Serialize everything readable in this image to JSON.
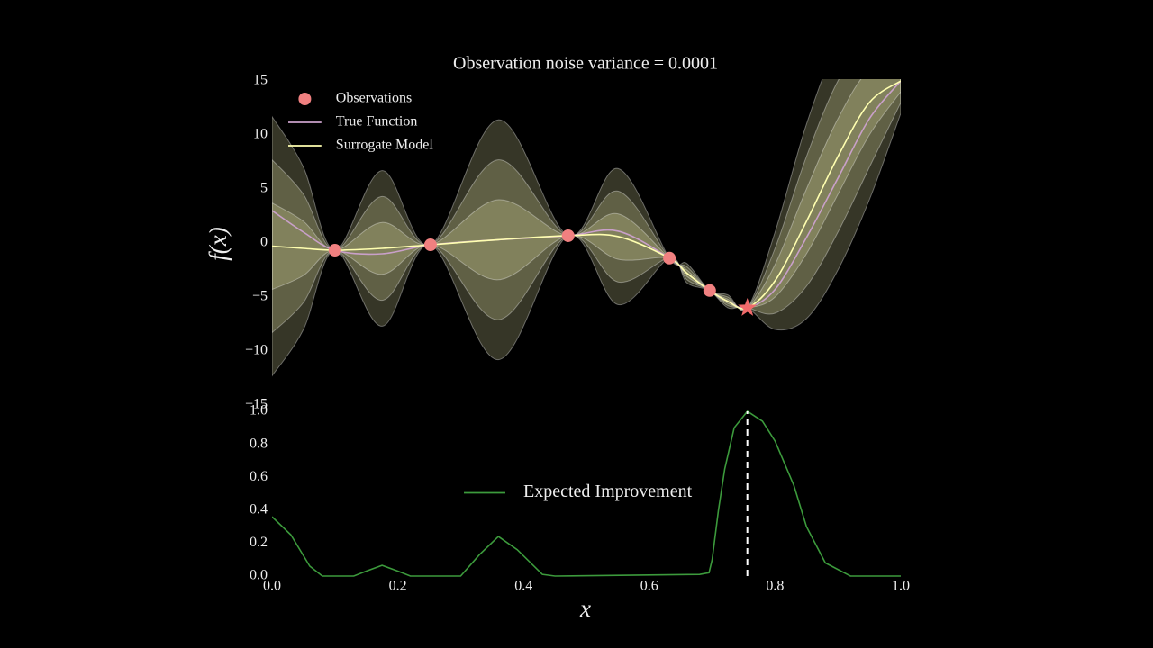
{
  "chart_data": [
    {
      "type": "line",
      "title": "Observation noise variance = 0.0001",
      "ylabel": "f(x)",
      "x": [
        0,
        0.05,
        0.1,
        0.175,
        0.252,
        0.36,
        0.471,
        0.55,
        0.632,
        0.66,
        0.696,
        0.725,
        0.756,
        0.8,
        0.85,
        0.9,
        0.95,
        1.0
      ],
      "xlim": [
        0,
        1
      ],
      "ylim": [
        -15,
        15
      ],
      "yticks": [
        {
          "value": -15,
          "label": "−15"
        },
        {
          "value": -10,
          "label": "−10"
        },
        {
          "value": -5,
          "label": "−5"
        },
        0,
        5,
        10,
        15
      ],
      "legend": "upper left",
      "series": [
        {
          "name": "True Function",
          "color": "#c9a0c9",
          "values": [
            3,
            1,
            -0.67,
            -1,
            -0.17,
            0.3,
            0.67,
            1.1,
            -1.4,
            -2.8,
            -4.4,
            -5.4,
            -6.0,
            -4.3,
            0.5,
            6,
            11.5,
            15
          ]
        },
        {
          "name": "Surrogate Model",
          "color": "#ffffb0",
          "values": [
            -0.3,
            -0.5,
            -0.67,
            -0.5,
            -0.17,
            0.3,
            0.67,
            0.6,
            -1.4,
            -2.8,
            -4.4,
            -5.4,
            -6.0,
            -3.5,
            2,
            8,
            13,
            15
          ]
        }
      ],
      "band_color": "#f5f5b0",
      "bands": [
        {
          "lower": [
            -12.3,
            -8,
            -0.67,
            -7.7,
            -0.17,
            -10.8,
            0.67,
            -5.7,
            -1.4,
            -3.7,
            -4.4,
            -6.0,
            -6.0,
            -8,
            -7,
            -2.5,
            4,
            12
          ],
          "upper": [
            11.7,
            7,
            -0.67,
            6.7,
            -0.17,
            11.4,
            0.67,
            6.9,
            -1.4,
            -1.9,
            -4.4,
            -4.8,
            -6.0,
            1,
            11,
            18.5,
            22,
            18
          ]
        },
        {
          "lower": [
            -8.3,
            -5.5,
            -0.67,
            -5.3,
            -0.17,
            -7.1,
            0.67,
            -3.6,
            -1.4,
            -3.4,
            -4.4,
            -5.8,
            -6.0,
            -6.5,
            -4,
            1,
            7,
            13
          ],
          "upper": [
            7.7,
            4.5,
            -0.67,
            4.3,
            -0.17,
            7.7,
            0.67,
            4.8,
            -1.4,
            -2.2,
            -4.4,
            -5.0,
            -6.0,
            -0.5,
            8,
            15,
            19,
            17
          ]
        },
        {
          "lower": [
            -4.3,
            -3,
            -0.67,
            -2.9,
            -0.17,
            -3.4,
            0.67,
            -1.5,
            -1.4,
            -3.1,
            -4.4,
            -5.6,
            -6.0,
            -5,
            -1,
            4.5,
            10,
            14
          ],
          "upper": [
            3.7,
            2,
            -0.67,
            1.9,
            -0.17,
            4,
            0.67,
            2.7,
            -1.4,
            -2.5,
            -4.4,
            -5.2,
            -6.0,
            -2,
            5,
            11.5,
            16,
            16
          ]
        }
      ],
      "observations": {
        "name": "Observations",
        "color": "#f08080",
        "x": [
          0.1,
          0.252,
          0.471,
          0.632,
          0.696
        ],
        "y": [
          -0.67,
          -0.17,
          0.67,
          -1.4,
          -4.4
        ]
      },
      "next_point": {
        "color": "#f06a6a",
        "x": 0.756,
        "y": -6.0
      }
    },
    {
      "type": "line",
      "xlabel": "x",
      "x": [
        0,
        0.03,
        0.06,
        0.08,
        0.13,
        0.15,
        0.175,
        0.2,
        0.22,
        0.3,
        0.33,
        0.36,
        0.39,
        0.43,
        0.45,
        0.68,
        0.695,
        0.7,
        0.71,
        0.72,
        0.735,
        0.756,
        0.78,
        0.8,
        0.83,
        0.85,
        0.88,
        0.92,
        1.0
      ],
      "xlim": [
        0,
        1
      ],
      "ylim": [
        0,
        1
      ],
      "xticks": [
        {
          "value": 0,
          "label": "0.0"
        },
        {
          "value": 0.2,
          "label": "0.2"
        },
        {
          "value": 0.4,
          "label": "0.4"
        },
        {
          "value": 0.6,
          "label": "0.6"
        },
        {
          "value": 0.8,
          "label": "0.8"
        },
        {
          "value": 1,
          "label": "1.0"
        }
      ],
      "yticks": [
        {
          "value": 0,
          "label": "0.0"
        },
        {
          "value": 0.2,
          "label": "0.2"
        },
        {
          "value": 0.4,
          "label": "0.4"
        },
        {
          "value": 0.6,
          "label": "0.6"
        },
        {
          "value": 0.8,
          "label": "0.8"
        },
        {
          "value": 1,
          "label": "1.0"
        }
      ],
      "legend": "center",
      "series": [
        {
          "name": "Expected Improvement",
          "color": "#3c9a3c",
          "values": [
            0.36,
            0.25,
            0.06,
            0.0,
            0.0,
            0.03,
            0.065,
            0.03,
            0.0,
            0.0,
            0.13,
            0.24,
            0.16,
            0.01,
            0.0,
            0.01,
            0.02,
            0.1,
            0.4,
            0.65,
            0.9,
            1.0,
            0.94,
            0.82,
            0.55,
            0.3,
            0.08,
            0.0,
            0.0
          ]
        }
      ],
      "proposal_color": "#ffffff"
    }
  ]
}
